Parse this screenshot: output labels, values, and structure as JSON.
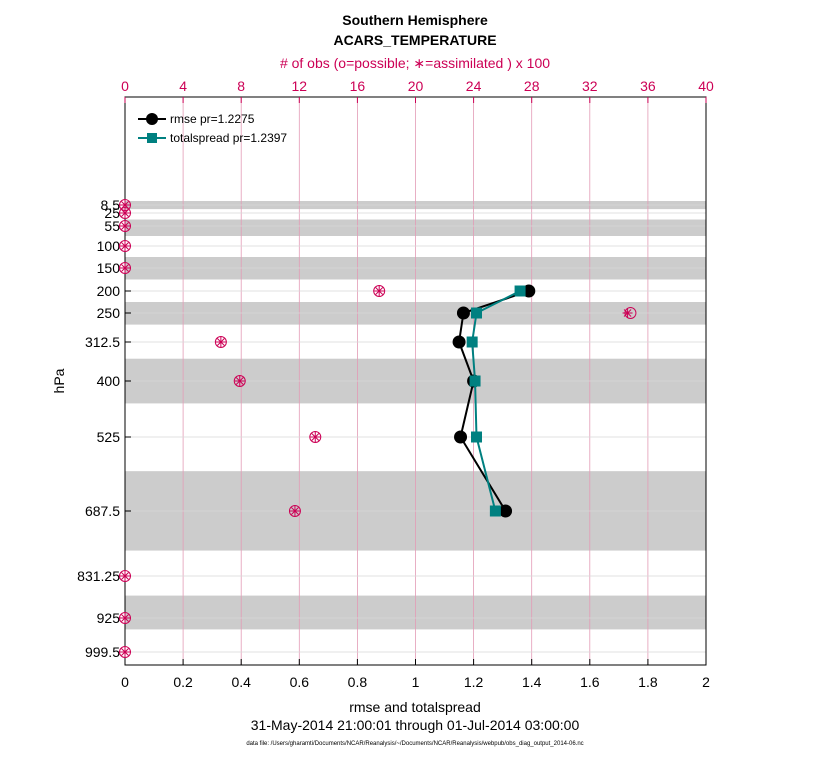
{
  "chart_data": {
    "type": "line",
    "title": "Southern Hemisphere",
    "subtitle": "ACARS_TEMPERATURE",
    "top_axis_label": "# of obs (o=possible; ∗=assimilated ) x 100",
    "xlabel": "rmse and totalspread",
    "ylabel": "hPa",
    "date_range": "31-May-2014 21:00:01 through 01-Jul-2014 03:00:00",
    "footnote": "data file: /Users/gharamti/Documents/NCAR/Reanalysis/~/Documents/NCAR/Reanalysis/webpub/obs_diag_output_2014-06.nc",
    "xlim": [
      0,
      2
    ],
    "x_ticks": [
      "0",
      "0.2",
      "0.4",
      "0.6",
      "0.8",
      "1",
      "1.2",
      "1.4",
      "1.6",
      "1.8",
      "2"
    ],
    "top_xlim": [
      0,
      40
    ],
    "top_ticks": [
      "0",
      "4",
      "8",
      "12",
      "16",
      "20",
      "24",
      "28",
      "32",
      "36",
      "40"
    ],
    "levels": [
      "8.5",
      "25",
      "55",
      "100",
      "150",
      "200",
      "250",
      "312.5",
      "400",
      "525",
      "687.5",
      "831.25",
      "925",
      "999.5"
    ],
    "level_values": [
      8.5,
      25,
      55,
      100,
      150,
      200,
      250,
      312.5,
      400,
      525,
      687.5,
      831.25,
      925,
      999.5
    ],
    "shaded_bands_hPa": [
      [
        0,
        17
      ],
      [
        40,
        77.5
      ],
      [
        125,
        175
      ],
      [
        225,
        275
      ],
      [
        350,
        450
      ],
      [
        600,
        775
      ],
      [
        875,
        950
      ]
    ],
    "series": [
      {
        "name": "rmse",
        "legend": "rmse pr=1.2275",
        "color": "#000000",
        "marker": "circle",
        "levels": [
          200,
          250,
          312.5,
          400,
          525,
          687.5
        ],
        "values": [
          1.39,
          1.165,
          1.15,
          1.2,
          1.155,
          1.31
        ]
      },
      {
        "name": "totalspread",
        "legend": "totalspread pr=1.2397",
        "color": "#008080",
        "marker": "square",
        "levels": [
          200,
          250,
          312.5,
          400,
          525,
          687.5
        ],
        "values": [
          1.36,
          1.21,
          1.195,
          1.205,
          1.21,
          1.275
        ]
      }
    ],
    "obs_counts": {
      "levels": [
        8.5,
        25,
        55,
        100,
        150,
        200,
        250,
        312.5,
        400,
        525,
        687.5,
        831.25,
        925,
        999.5
      ],
      "possible": [
        0,
        0,
        0,
        0,
        0,
        17.5,
        34.8,
        6.6,
        7.9,
        13.1,
        11.7,
        0,
        0,
        0
      ],
      "assimilated": [
        0,
        0,
        0,
        0,
        0,
        17.5,
        34.6,
        6.6,
        7.9,
        13.1,
        11.7,
        0,
        0,
        0
      ],
      "color": "#cc0055"
    },
    "grid": true,
    "legend_position": "top-left"
  }
}
